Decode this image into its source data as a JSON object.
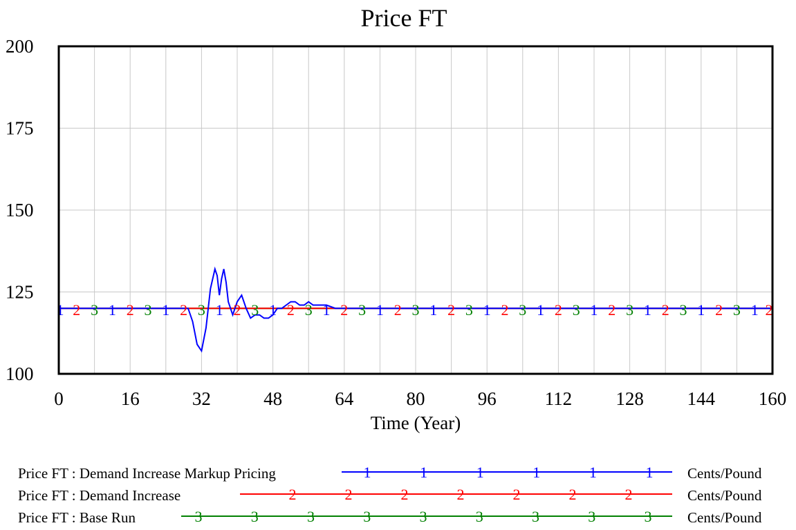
{
  "chart_data": {
    "type": "line",
    "title": "Price FT",
    "xlabel": "Time (Year)",
    "ylabel": "",
    "xlim": [
      0,
      160
    ],
    "ylim": [
      100,
      200
    ],
    "x_ticks": [
      "0",
      "16",
      "32",
      "48",
      "64",
      "80",
      "96",
      "112",
      "128",
      "144",
      "160"
    ],
    "y_ticks": [
      "200",
      "175",
      "150",
      "125",
      "100"
    ],
    "grid": true,
    "legend_position": "bottom",
    "series": [
      {
        "name": "Price FT : Demand Increase Markup Pricing",
        "marker": "1",
        "unit": "Cents/Pound",
        "color": "#0000ff",
        "x": [
          0,
          29,
          30,
          31,
          32,
          33,
          34,
          35,
          35.5,
          36,
          36.5,
          37,
          37.5,
          38,
          39,
          40,
          41,
          42,
          43,
          44,
          45,
          46,
          47,
          48,
          49,
          50,
          51,
          52,
          53,
          54,
          55,
          56,
          57,
          58,
          60,
          62,
          64,
          66,
          68,
          160
        ],
        "y": [
          120,
          120,
          116,
          109,
          107,
          114,
          126,
          132,
          130,
          124,
          129,
          132,
          128,
          122,
          118,
          122,
          124,
          120,
          117,
          118,
          118,
          117,
          117,
          118,
          120,
          120,
          121,
          122,
          122,
          121,
          121,
          122,
          121,
          121,
          121,
          120,
          120,
          120,
          120,
          120
        ]
      },
      {
        "name": "Price FT : Demand Increase",
        "marker": "2",
        "unit": "Cents/Pound",
        "color": "#ff0000",
        "x": [
          0,
          160
        ],
        "y": [
          120,
          120
        ]
      },
      {
        "name": "Price FT : Base Run",
        "marker": "3",
        "unit": "Cents/Pound",
        "color": "#008000",
        "x": [
          0,
          160
        ],
        "y": [
          120,
          120
        ]
      }
    ]
  }
}
